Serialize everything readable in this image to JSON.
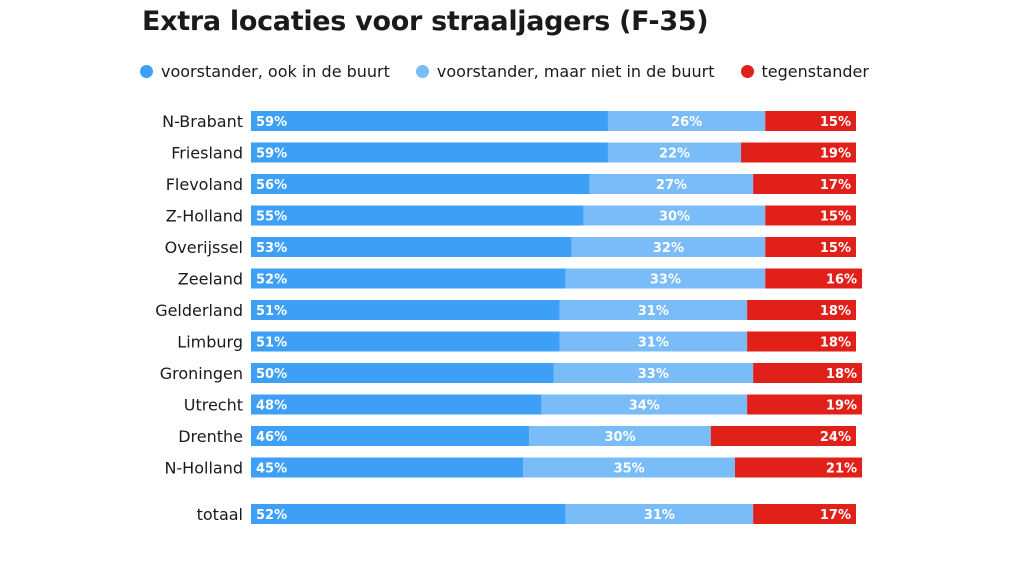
{
  "chart_data": {
    "type": "bar",
    "orientation": "horizontal",
    "stacked": true,
    "title": "Extra locaties voor straaljagers (F-35)",
    "xlabel": "",
    "ylabel": "",
    "xlim": [
      0,
      100
    ],
    "grid": false,
    "legend_position": "top",
    "categories": [
      "N-Brabant",
      "Friesland",
      "Flevoland",
      "Z-Holland",
      "Overijssel",
      "Zeeland",
      "Gelderland",
      "Limburg",
      "Groningen",
      "Utrecht",
      "Drenthe",
      "N-Holland",
      "totaal"
    ],
    "series": [
      {
        "name": "voorstander, ook in de buurt",
        "color": "#3d9ff5",
        "values": [
          59,
          59,
          56,
          55,
          53,
          52,
          51,
          51,
          50,
          48,
          46,
          45,
          52
        ]
      },
      {
        "name": "voorstander, maar niet in de buurt",
        "color": "#7abcf8",
        "values": [
          26,
          22,
          27,
          30,
          32,
          33,
          31,
          31,
          33,
          34,
          30,
          35,
          31
        ]
      },
      {
        "name": "tegenstander",
        "color": "#e1201a",
        "values": [
          15,
          19,
          17,
          15,
          15,
          16,
          18,
          18,
          18,
          19,
          24,
          21,
          17
        ]
      }
    ],
    "value_suffix": "%"
  }
}
